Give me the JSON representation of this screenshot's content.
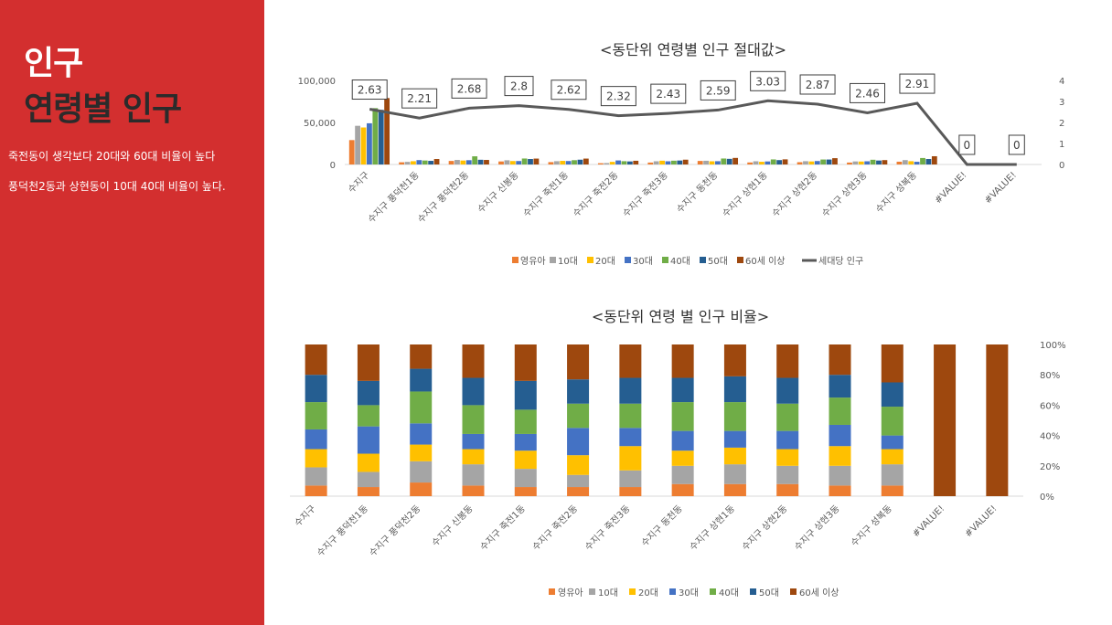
{
  "sidebar": {
    "title_line1": "인구",
    "title_line2": "연령별 인구",
    "notes": [
      "죽전동이 생각보다 20대와 60대 비율이 높다",
      "풍덕천2동과 상현동이 10대 40대 비율이 높다."
    ],
    "background": "#d32f2f"
  },
  "chart_data": [
    {
      "type": "bar",
      "title": "<동단위 연령별 인구 절대값>",
      "categories": [
        "수지구",
        "수지구 풍덕천1동",
        "수지구 풍덕천2동",
        "수지구 신봉동",
        "수지구 죽전1동",
        "수지구 죽전2동",
        "수지구 죽전3동",
        "수지구 동천동",
        "수지구 상현1동",
        "수지구 상현2동",
        "수지구 상현3동",
        "수지구 성복동",
        "#VALUE!",
        "#VALUE!"
      ],
      "series": [
        {
          "name": "영유아",
          "color": "#ED7D31",
          "values": [
            29000,
            2600,
            4200,
            3600,
            2800,
            1500,
            2300,
            4200,
            2400,
            2700,
            2300,
            3300,
            0,
            0
          ]
        },
        {
          "name": "10대",
          "color": "#A5A5A5",
          "values": [
            46000,
            3100,
            5400,
            5000,
            3900,
            1700,
            3800,
            4400,
            3800,
            3900,
            3600,
            5200,
            0,
            0
          ]
        },
        {
          "name": "20대",
          "color": "#FFC000",
          "values": [
            44000,
            3900,
            4700,
            4100,
            4300,
            3100,
            4500,
            3800,
            3200,
            3600,
            3500,
            3900,
            0,
            0
          ]
        },
        {
          "name": "30대",
          "color": "#4472C4",
          "values": [
            49000,
            5200,
            5100,
            4100,
            4100,
            4800,
            3800,
            3900,
            3600,
            4100,
            3800,
            3200,
            0,
            0
          ]
        },
        {
          "name": "40대",
          "color": "#70AD47",
          "values": [
            67000,
            4700,
            9700,
            7100,
            5100,
            3900,
            4500,
            7100,
            6000,
            5900,
            5600,
            7700,
            0,
            0
          ]
        },
        {
          "name": "50대",
          "color": "#255E91",
          "values": [
            65000,
            4300,
            5600,
            6500,
            5700,
            3600,
            4700,
            6700,
            5200,
            5900,
            4700,
            6500,
            0,
            0
          ]
        },
        {
          "name": "60세 이상",
          "color": "#9E480E",
          "values": [
            79000,
            6500,
            5400,
            7000,
            7000,
            4400,
            5700,
            7800,
            6100,
            7500,
            5200,
            9800,
            0,
            0
          ]
        }
      ],
      "line_series": {
        "name": "세대당 인구",
        "color": "#595959",
        "values": [
          2.63,
          2.21,
          2.68,
          2.8,
          2.62,
          2.32,
          2.43,
          2.59,
          3.03,
          2.87,
          2.46,
          2.91,
          0,
          0
        ]
      },
      "y_left": {
        "ticks": [
          "0",
          "50,000",
          "100,000"
        ],
        "ylim": [
          0,
          100000
        ]
      },
      "y_right": {
        "ticks": [
          "0",
          "1",
          "2",
          "3",
          "4"
        ],
        "ylim": [
          0,
          4
        ]
      },
      "legend_position": "bottom"
    },
    {
      "type": "bar",
      "stacked": "percent",
      "title": "<동단위 연령 별 인구 비율>",
      "categories": [
        "수지구",
        "수지구 풍덕천1동",
        "수지구 풍덕천2동",
        "수지구 신봉동",
        "수지구 죽전1동",
        "수지구 죽전2동",
        "수지구 죽전3동",
        "수지구 동천동",
        "수지구 상현1동",
        "수지구 상현2동",
        "수지구 상현3동",
        "수지구 성복동",
        "#VALUE!",
        "#VALUE!"
      ],
      "series": [
        {
          "name": "영유아",
          "color": "#ED7D31",
          "values": [
            0.07,
            0.06,
            0.09,
            0.07,
            0.06,
            0.06,
            0.06,
            0.08,
            0.08,
            0.08,
            0.07,
            0.07,
            0,
            0
          ]
        },
        {
          "name": "10대",
          "color": "#A5A5A5",
          "values": [
            0.12,
            0.1,
            0.14,
            0.14,
            0.12,
            0.08,
            0.11,
            0.12,
            0.13,
            0.12,
            0.13,
            0.14,
            0,
            0
          ]
        },
        {
          "name": "20대",
          "color": "#FFC000",
          "values": [
            0.12,
            0.12,
            0.11,
            0.1,
            0.12,
            0.13,
            0.16,
            0.1,
            0.11,
            0.11,
            0.13,
            0.1,
            0,
            0
          ]
        },
        {
          "name": "30대",
          "color": "#4472C4",
          "values": [
            0.13,
            0.18,
            0.14,
            0.1,
            0.11,
            0.18,
            0.12,
            0.13,
            0.11,
            0.12,
            0.14,
            0.09,
            0,
            0
          ]
        },
        {
          "name": "40대",
          "color": "#70AD47",
          "values": [
            0.18,
            0.14,
            0.21,
            0.19,
            0.16,
            0.16,
            0.16,
            0.19,
            0.19,
            0.18,
            0.18,
            0.19,
            0,
            0
          ]
        },
        {
          "name": "50대",
          "color": "#255E91",
          "values": [
            0.18,
            0.16,
            0.15,
            0.18,
            0.19,
            0.16,
            0.17,
            0.16,
            0.17,
            0.17,
            0.15,
            0.16,
            0,
            0
          ]
        },
        {
          "name": "60세 이상",
          "color": "#9E480E",
          "values": [
            0.2,
            0.24,
            0.16,
            0.22,
            0.24,
            0.23,
            0.22,
            0.22,
            0.21,
            0.22,
            0.2,
            0.25,
            1,
            1
          ]
        }
      ],
      "y_right": {
        "ticks": [
          "0%",
          "20%",
          "40%",
          "60%",
          "80%",
          "100%"
        ],
        "ylim": [
          0,
          1
        ]
      },
      "legend_position": "bottom"
    }
  ]
}
